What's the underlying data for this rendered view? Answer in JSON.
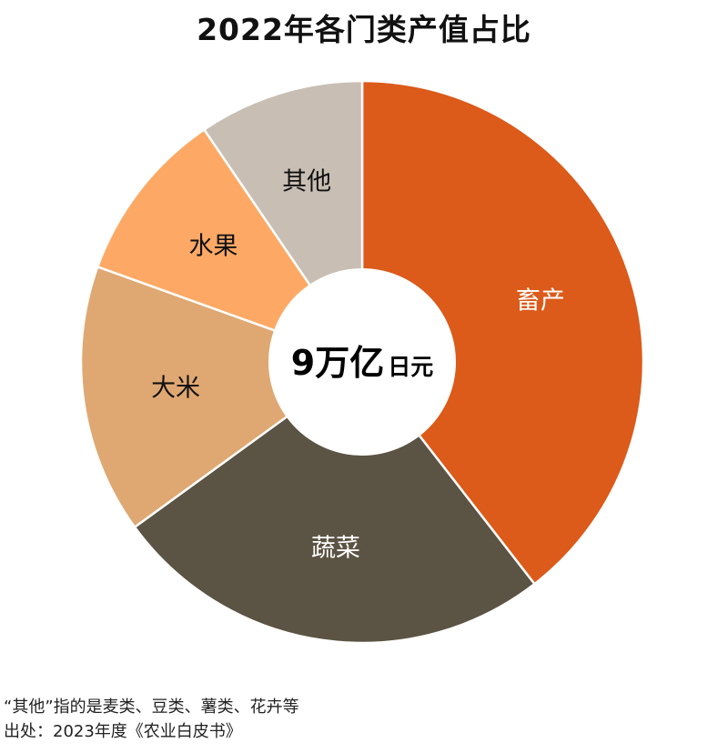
{
  "title": "2022年各门类产值占比",
  "chart_data": {
    "type": "pie",
    "title": "2022年各门类产值占比",
    "categories": [
      "畜产",
      "蔬菜",
      "大米",
      "水果",
      "其他"
    ],
    "values": [
      39.5,
      25.5,
      15.5,
      10.0,
      9.5
    ],
    "colors": [
      "#dc5a1a",
      "#5b5343",
      "#dfa872",
      "#fda965",
      "#c8beb4"
    ],
    "label_colors": [
      "#ffffff",
      "#ffffff",
      "#111111",
      "#111111",
      "#111111"
    ],
    "start_angle": 0,
    "direction": "clockwise",
    "donut": true,
    "center_value": "9万亿",
    "center_unit": "日元"
  },
  "footnotes": {
    "note": "“其他”指的是麦类、豆类、薯类、花卉等",
    "source": "出处：2023年度《农业白皮书》"
  }
}
